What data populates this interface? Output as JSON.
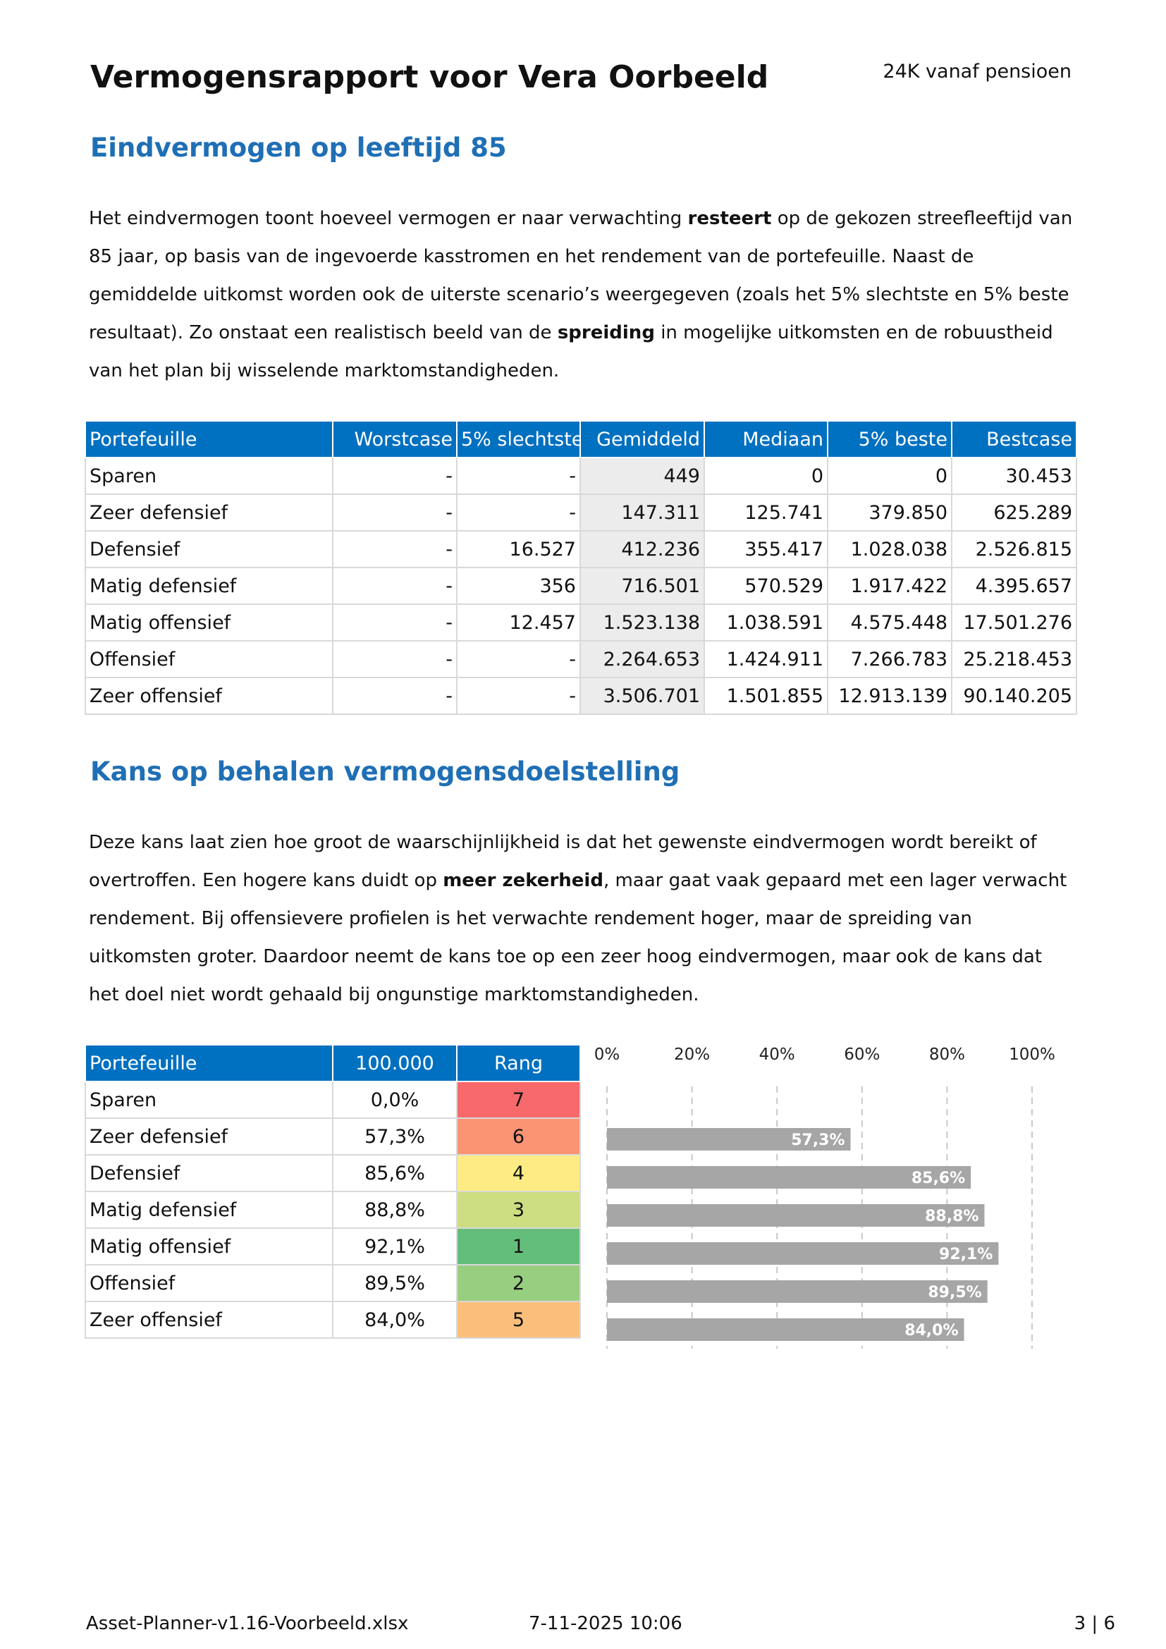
{
  "header": {
    "title": "Vermogensrapport voor Vera Oorbeeld",
    "subtitle": "24K vanaf pensioen"
  },
  "section1": {
    "heading": "Eindvermogen op leeftijd 85",
    "paragraph": [
      {
        "text": "Het eindvermogen toont hoeveel vermogen er naar verwachting "
      },
      {
        "text": "resteert",
        "bold": true
      },
      {
        "text": " op de gekozen streefleeftijd van 85 jaar, op basis van de ingevoerde kasstromen en het rendement van de portefeuille. Naast de gemiddelde uitkomst worden ook de uiterste scenario’s weergegeven (zoals het 5% slechtste en 5% beste resultaat). Zo onstaat een realistisch beeld van de "
      },
      {
        "text": "spreiding",
        "bold": true
      },
      {
        "text": " in mogelijke uitkomsten en de robuustheid van het plan bij wisselende marktomstandigheden."
      }
    ]
  },
  "table1": {
    "columns": [
      "Portefeuille",
      "Worstcase",
      "5% slechtste",
      "Gemiddeld",
      "Mediaan",
      "5% beste",
      "Bestcase"
    ],
    "rows": [
      [
        "Sparen",
        "-",
        "-",
        "449",
        "0",
        "0",
        "30.453"
      ],
      [
        "Zeer defensief",
        "-",
        "-",
        "147.311",
        "125.741",
        "379.850",
        "625.289"
      ],
      [
        "Defensief",
        "-",
        "16.527",
        "412.236",
        "355.417",
        "1.028.038",
        "2.526.815"
      ],
      [
        "Matig defensief",
        "-",
        "356",
        "716.501",
        "570.529",
        "1.917.422",
        "4.395.657"
      ],
      [
        "Matig offensief",
        "-",
        "12.457",
        "1.523.138",
        "1.038.591",
        "4.575.448",
        "17.501.276"
      ],
      [
        "Offensief",
        "-",
        "-",
        "2.264.653",
        "1.424.911",
        "7.266.783",
        "25.218.453"
      ],
      [
        "Zeer offensief",
        "-",
        "-",
        "3.506.701",
        "1.501.855",
        "12.913.139",
        "90.140.205"
      ]
    ]
  },
  "section2": {
    "heading": "Kans op behalen vermogensdoelstelling",
    "paragraph": [
      {
        "text": "Deze kans laat zien hoe groot de waarschijnlijkheid is dat het gewenste eindvermogen wordt bereikt of overtroffen. Een hogere kans duidt op "
      },
      {
        "text": "meer zekerheid",
        "bold": true
      },
      {
        "text": ", maar gaat vaak gepaard met een lager verwacht rendement. Bij offensievere profielen is het verwachte rendement hoger, maar de spreiding van uitkomsten groter. Daardoor neemt de kans toe op een zeer hoog eindvermogen, maar ook de kans dat het doel niet wordt gehaald bij ongunstige marktomstandigheden."
      }
    ]
  },
  "table2": {
    "columns": [
      "Portefeuille",
      "100.000",
      "Rang"
    ],
    "rows": [
      [
        "Sparen",
        "0,0%",
        "7"
      ],
      [
        "Zeer defensief",
        "57,3%",
        "6"
      ],
      [
        "Defensief",
        "85,6%",
        "4"
      ],
      [
        "Matig defensief",
        "88,8%",
        "3"
      ],
      [
        "Matig offensief",
        "92,1%",
        "1"
      ],
      [
        "Offensief",
        "89,5%",
        "2"
      ],
      [
        "Zeer offensief",
        "84,0%",
        "5"
      ]
    ],
    "rank_colors": [
      "#f8696b",
      "#fa9473",
      "#ffeb84",
      "#cddd82",
      "#63be7b",
      "#98ce7f",
      "#fbbf7b"
    ]
  },
  "chart_data": {
    "type": "bar",
    "orientation": "horizontal",
    "values": [
      0,
      57.3,
      85.6,
      88.8,
      92.1,
      89.5,
      84.0
    ],
    "value_labels": [
      null,
      "57,3%",
      "85,6%",
      "88,8%",
      "92,1%",
      "89,5%",
      "84,0%"
    ],
    "color": "#a6a6a6",
    "xlim": [
      0,
      100
    ],
    "xticks": [
      {
        "value": 0,
        "label": "0%"
      },
      {
        "value": 20,
        "label": "20%"
      },
      {
        "value": 40,
        "label": "40%"
      },
      {
        "value": 60,
        "label": "60%"
      },
      {
        "value": 80,
        "label": "80%"
      },
      {
        "value": 100,
        "label": "100%"
      }
    ],
    "grid": true
  },
  "footer": {
    "file": "Asset-Planner-v1.16-Voorbeeld.xlsx",
    "date": "7-11-2025 10:06",
    "page": "3 | 6"
  }
}
